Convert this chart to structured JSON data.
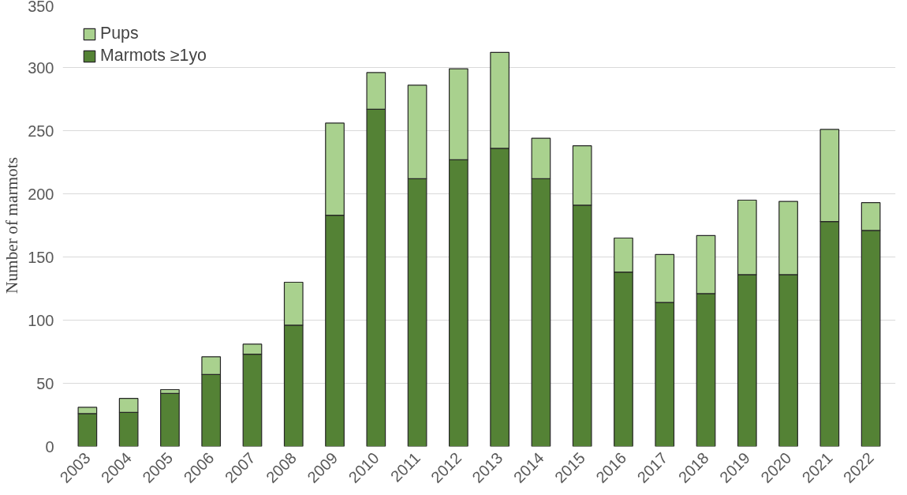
{
  "chart_data": {
    "type": "bar",
    "ylabel": "Number of marmots",
    "stacked": true,
    "categories": [
      "2003",
      "2004",
      "2005",
      "2006",
      "2007",
      "2008",
      "2009",
      "2010",
      "2011",
      "2012",
      "2013",
      "2014",
      "2015",
      "2016",
      "2017",
      "2018",
      "2019",
      "2020",
      "2021",
      "2022"
    ],
    "series": [
      {
        "name": "Marmots ≥1yo",
        "color": "#548235",
        "values": [
          26,
          27,
          42,
          57,
          73,
          96,
          183,
          267,
          212,
          227,
          236,
          212,
          191,
          138,
          114,
          121,
          136,
          136,
          178,
          171
        ]
      },
      {
        "name": "Pups",
        "color": "#a9d18e",
        "values": [
          5,
          11,
          3,
          14,
          8,
          34,
          73,
          29,
          74,
          72,
          76,
          32,
          47,
          27,
          38,
          46,
          59,
          58,
          73,
          22
        ]
      }
    ],
    "ylim": [
      0,
      350
    ],
    "yticks": [
      0,
      50,
      100,
      150,
      200,
      250,
      300,
      350
    ],
    "grid": "y",
    "legend": "top left"
  }
}
